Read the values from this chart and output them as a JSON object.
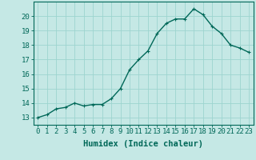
{
  "x": [
    0,
    1,
    2,
    3,
    4,
    5,
    6,
    7,
    8,
    9,
    10,
    11,
    12,
    13,
    14,
    15,
    16,
    17,
    18,
    19,
    20,
    21,
    22,
    23
  ],
  "y": [
    13.0,
    13.2,
    13.6,
    13.7,
    14.0,
    13.8,
    13.9,
    13.9,
    14.3,
    15.0,
    16.3,
    17.0,
    17.6,
    18.8,
    19.5,
    19.8,
    19.8,
    20.5,
    20.1,
    19.3,
    18.8,
    18.0,
    17.8,
    17.5
  ],
  "line_color": "#006858",
  "bg_color": "#c5e8e5",
  "grid_color": "#9dd4cf",
  "xlabel": "Humidex (Indice chaleur)",
  "xlim": [
    -0.5,
    23.5
  ],
  "ylim": [
    12.5,
    21.0
  ],
  "yticks": [
    13,
    14,
    15,
    16,
    17,
    18,
    19,
    20
  ],
  "xticks": [
    0,
    1,
    2,
    3,
    4,
    5,
    6,
    7,
    8,
    9,
    10,
    11,
    12,
    13,
    14,
    15,
    16,
    17,
    18,
    19,
    20,
    21,
    22,
    23
  ],
  "xlabel_fontsize": 7.5,
  "tick_fontsize": 6.5,
  "line_width": 1.0,
  "marker_size": 2.5
}
